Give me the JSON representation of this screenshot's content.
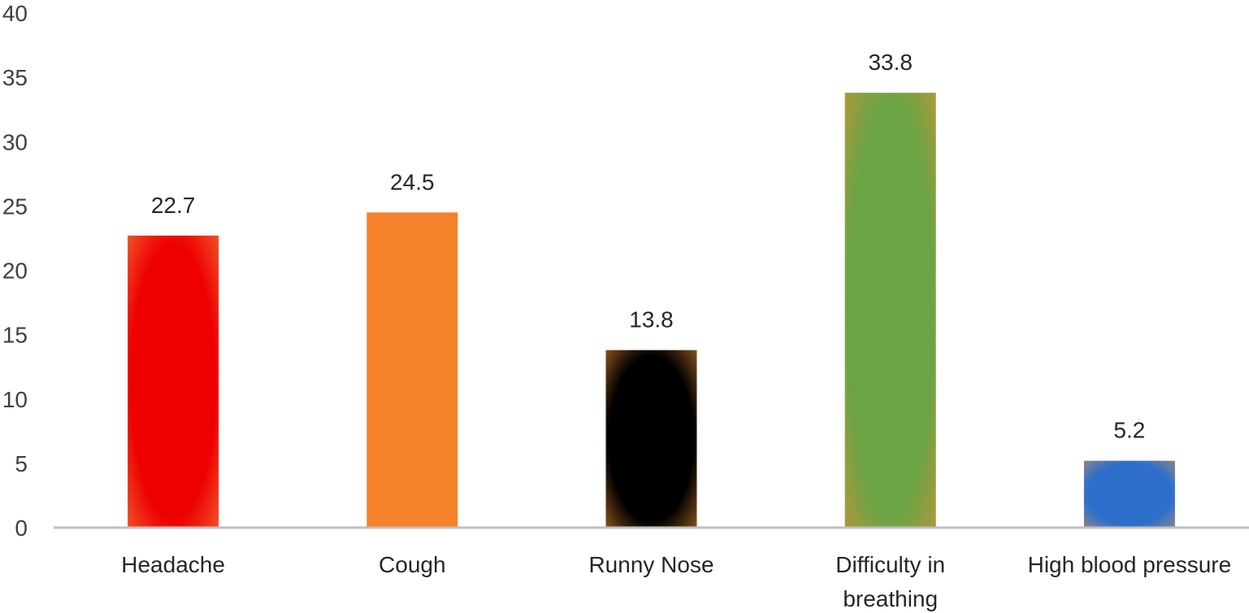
{
  "chart_data": {
    "type": "bar",
    "title": "",
    "xlabel": "",
    "ylabel": "",
    "ylim": [
      0,
      40
    ],
    "yticks": [
      0,
      5,
      10,
      15,
      20,
      25,
      30,
      35,
      40
    ],
    "grid": false,
    "legend": "none",
    "data_labels": true,
    "categories": [
      "Headache",
      "Cough",
      "Runny Nose",
      "Difficulty in breathing",
      "High blood pressure"
    ],
    "category_label_lines": [
      [
        "Headache"
      ],
      [
        "Cough"
      ],
      [
        "Runny Nose"
      ],
      [
        "Difficulty in",
        "breathing"
      ],
      [
        "High blood pressure"
      ]
    ],
    "values": [
      22.7,
      24.5,
      13.8,
      33.8,
      5.2
    ],
    "value_labels": [
      "22.7",
      "24.5",
      "13.8",
      "33.8",
      "5.2"
    ],
    "bar_fill_colors": [
      "#ee0000",
      "#f5822a",
      "#000000",
      "#6aa445",
      "#2e6fcb"
    ],
    "bar_edge_colors": [
      "#f06030",
      "#f5822a",
      "#a06020",
      "#b8963a",
      "#9a8a80"
    ],
    "axis_color": "#bfbfbf"
  }
}
